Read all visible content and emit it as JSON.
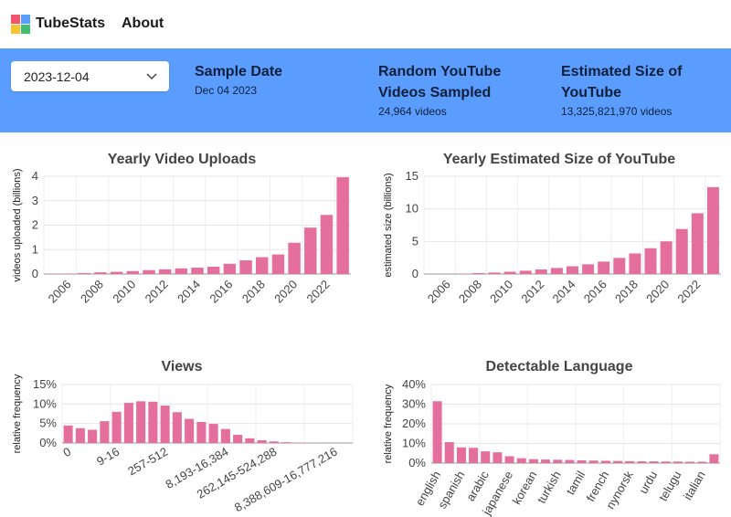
{
  "nav": {
    "brand": "TubeStats",
    "about": "About"
  },
  "colors": {
    "banner": "#5a9dff",
    "bar": "#e56f9c",
    "accent_dark": "#0f1f3a"
  },
  "controls": {
    "date_select": {
      "value": "2023-12-04",
      "icon": "chevron-down-icon"
    }
  },
  "stats": [
    {
      "title": "Sample Date",
      "value": "Dec 04 2023"
    },
    {
      "title": "Random YouTube Videos Sampled",
      "value": "24,964 videos"
    },
    {
      "title": "Estimated Size of YouTube",
      "value": "13,325,821,970 videos"
    }
  ],
  "chart_data": [
    {
      "type": "bar",
      "title": "Yearly Video Uploads",
      "xlabel": "",
      "ylabel": "videos uploaded (billions)",
      "ylim": [
        0,
        4
      ],
      "yticks": [
        "0",
        "1",
        "2",
        "3",
        "4"
      ],
      "ytick_values": [
        0,
        1,
        2,
        3,
        4
      ],
      "categories": [
        "2005",
        "2006",
        "2007",
        "2008",
        "2009",
        "2010",
        "2011",
        "2012",
        "2013",
        "2014",
        "2015",
        "2016",
        "2017",
        "2018",
        "2019",
        "2020",
        "2021",
        "2022",
        "2023"
      ],
      "xtick_labels": [
        "2006",
        "2008",
        "2010",
        "2012",
        "2014",
        "2016",
        "2018",
        "2020",
        "2022"
      ],
      "values": [
        0.01,
        0.02,
        0.04,
        0.07,
        0.09,
        0.12,
        0.16,
        0.19,
        0.23,
        0.26,
        0.3,
        0.42,
        0.56,
        0.69,
        0.8,
        1.28,
        1.9,
        2.42,
        3.96
      ],
      "grid": true
    },
    {
      "type": "bar",
      "title": "Yearly Estimated Size of YouTube",
      "xlabel": "",
      "ylabel": "estimated size (billions)",
      "ylim": [
        0,
        15
      ],
      "yticks": [
        "0",
        "5",
        "10",
        "15"
      ],
      "ytick_values": [
        0,
        5,
        10,
        15
      ],
      "categories": [
        "2005",
        "2006",
        "2007",
        "2008",
        "2009",
        "2010",
        "2011",
        "2012",
        "2013",
        "2014",
        "2015",
        "2016",
        "2017",
        "2018",
        "2019",
        "2020",
        "2021",
        "2022",
        "2023"
      ],
      "xtick_labels": [
        "2006",
        "2008",
        "2010",
        "2012",
        "2014",
        "2016",
        "2018",
        "2020",
        "2022"
      ],
      "values": [
        0.01,
        0.03,
        0.07,
        0.14,
        0.23,
        0.35,
        0.51,
        0.7,
        0.93,
        1.19,
        1.49,
        1.91,
        2.47,
        3.16,
        3.96,
        5.01,
        6.91,
        9.33,
        13.33
      ],
      "grid": true
    },
    {
      "type": "bar",
      "title": "Views",
      "xlabel": "",
      "ylabel": "relative frequency",
      "ylim": [
        0,
        0.15
      ],
      "yticks": [
        "0%",
        "5%",
        "10%",
        "15%"
      ],
      "ytick_values": [
        0,
        0.05,
        0.1,
        0.15
      ],
      "xtick_labels": [
        "0",
        "9-16",
        "257-512",
        "8,193-16,384",
        "262,145-524,288",
        "8,388,609-16,777,216"
      ],
      "values": [
        0.045,
        0.038,
        0.034,
        0.056,
        0.08,
        0.103,
        0.107,
        0.106,
        0.096,
        0.079,
        0.062,
        0.054,
        0.049,
        0.036,
        0.021,
        0.012,
        0.007,
        0.004,
        0.002,
        0.001,
        0.0006,
        0.0003,
        0.0002,
        0.0001
      ],
      "grid": true
    },
    {
      "type": "bar",
      "title": "Detectable Language",
      "xlabel": "",
      "ylabel": "relative frequency",
      "ylim": [
        0,
        0.4
      ],
      "yticks": [
        "0%",
        "10%",
        "20%",
        "30%",
        "40%"
      ],
      "ytick_values": [
        0,
        0.1,
        0.2,
        0.3,
        0.4
      ],
      "xtick_labels": [
        "english",
        "spanish",
        "arabic",
        "japanese",
        "korean",
        "turkish",
        "tamil",
        "french",
        "nynorsk",
        "urdu",
        "telugu",
        "italian"
      ],
      "values": [
        0.315,
        0.107,
        0.08,
        0.078,
        0.06,
        0.055,
        0.035,
        0.025,
        0.02,
        0.018,
        0.017,
        0.016,
        0.014,
        0.013,
        0.012,
        0.011,
        0.01,
        0.009,
        0.009,
        0.008,
        0.008,
        0.007,
        0.007,
        0.045
      ],
      "grid": true
    }
  ]
}
